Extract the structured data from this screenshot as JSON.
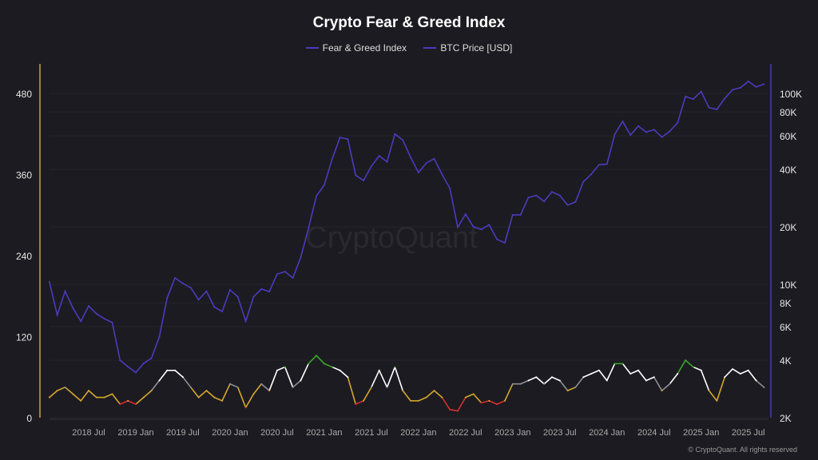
{
  "chart_data": {
    "type": "line",
    "title": "Crypto Fear & Greed Index",
    "legend_position": "top",
    "series": [
      {
        "name": "Fear & Greed Index",
        "axis": "left",
        "color": "#4b3bbf",
        "zone_colors": {
          "extreme_fear": "#d62f2f",
          "fear": "#d4a72c",
          "neutral": "#8e8e96",
          "greed": "#ffffff",
          "extreme_greed": "#3aa829"
        },
        "start": "2018-02",
        "values": [
          30,
          40,
          45,
          35,
          25,
          40,
          30,
          30,
          35,
          20,
          25,
          20,
          30,
          40,
          55,
          70,
          70,
          60,
          45,
          30,
          40,
          30,
          25,
          50,
          45,
          15,
          35,
          50,
          40,
          70,
          75,
          45,
          55,
          80,
          92,
          80,
          75,
          70,
          60,
          20,
          25,
          45,
          70,
          45,
          75,
          40,
          25,
          25,
          30,
          40,
          30,
          12,
          10,
          30,
          35,
          22,
          25,
          20,
          25,
          50,
          50,
          55,
          60,
          50,
          60,
          55,
          40,
          45,
          60,
          65,
          70,
          55,
          80,
          80,
          65,
          70,
          55,
          60,
          40,
          50,
          65,
          85,
          75,
          70,
          40,
          25,
          60,
          72,
          65,
          70,
          55,
          45
        ]
      },
      {
        "name": "BTC Price [USD]",
        "axis": "right",
        "color": "#4b3bbf",
        "start": "2018-02",
        "values": [
          10300,
          6900,
          9200,
          7500,
          6400,
          7700,
          7000,
          6600,
          6300,
          4000,
          3700,
          3450,
          3850,
          4100,
          5300,
          8500,
          10800,
          10100,
          9600,
          8300,
          9200,
          7600,
          7200,
          9350,
          8600,
          6400,
          8600,
          9450,
          9150,
          11300,
          11650,
          10800,
          13800,
          19700,
          29000,
          33100,
          45200,
          58800,
          57700,
          37300,
          35000,
          41500,
          47100,
          43800,
          61300,
          57000,
          46300,
          38500,
          43200,
          45500,
          37700,
          31800,
          19900,
          23300,
          20000,
          19400,
          20500,
          17200,
          16500,
          23100,
          23100,
          28500,
          29200,
          27200,
          30500,
          29200,
          26000,
          27000,
          34500,
          37700,
          42300,
          42600,
          61200,
          71300,
          60600,
          67500,
          62700,
          64600,
          59000,
          63300,
          70200,
          96400,
          93400,
          102400,
          84300,
          82500,
          94200,
          104600,
          107100,
          115700,
          108200,
          112000
        ]
      }
    ],
    "left_axis": {
      "ylim": [
        0,
        480
      ],
      "ticks": [
        "0",
        "120",
        "240",
        "360",
        "480"
      ],
      "color": "#c9a23a"
    },
    "right_axis": {
      "scale": "log",
      "ylim": [
        2000,
        100000
      ],
      "ticks": [
        {
          "v": 2000,
          "l": "2K"
        },
        {
          "v": 4000,
          "l": "4K"
        },
        {
          "v": 6000,
          "l": "6K"
        },
        {
          "v": 8000,
          "l": "8K"
        },
        {
          "v": 10000,
          "l": "10K"
        },
        {
          "v": 20000,
          "l": "20K"
        },
        {
          "v": 40000,
          "l": "40K"
        },
        {
          "v": 60000,
          "l": "60K"
        },
        {
          "v": 80000,
          "l": "80K"
        },
        {
          "v": 100000,
          "l": "100K"
        }
      ],
      "color": "#4b3bbf"
    },
    "x_ticks": [
      {
        "d": "2018-07",
        "l": "2018 Jul"
      },
      {
        "d": "2019-01",
        "l": "2019 Jan"
      },
      {
        "d": "2019-07",
        "l": "2019 Jul"
      },
      {
        "d": "2020-01",
        "l": "2020 Jan"
      },
      {
        "d": "2020-07",
        "l": "2020 Jul"
      },
      {
        "d": "2021-01",
        "l": "2021 Jan"
      },
      {
        "d": "2021-07",
        "l": "2021 Jul"
      },
      {
        "d": "2022-01",
        "l": "2022 Jan"
      },
      {
        "d": "2022-07",
        "l": "2022 Jul"
      },
      {
        "d": "2023-01",
        "l": "2023 Jan"
      },
      {
        "d": "2023-07",
        "l": "2023 Jul"
      },
      {
        "d": "2024-01",
        "l": "2024 Jan"
      },
      {
        "d": "2024-07",
        "l": "2024 Jul"
      },
      {
        "d": "2025-01",
        "l": "2025 Jan"
      },
      {
        "d": "2025-07",
        "l": "2025 Jul"
      }
    ],
    "grid": true
  },
  "legend": {
    "fg": "Fear & Greed Index",
    "btc": "BTC Price [USD]"
  },
  "watermark": "CryptoQuant",
  "footer": "© CryptoQuant. All rights reserved"
}
